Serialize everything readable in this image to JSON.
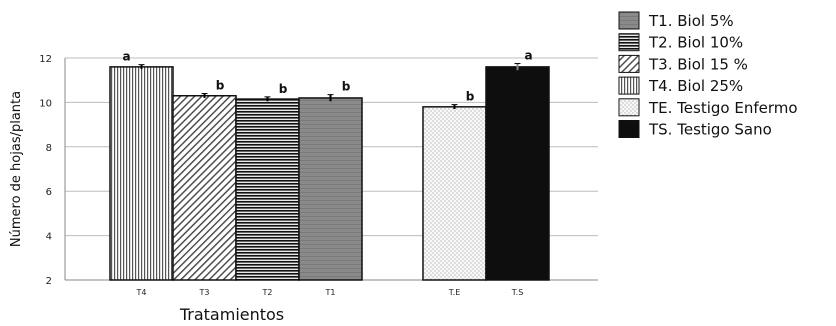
{
  "chart_data": {
    "type": "bar",
    "categories": [
      "T4",
      "T3",
      "T2",
      "T1",
      "T.E",
      "T.S"
    ],
    "values": [
      11.6,
      10.3,
      10.15,
      10.2,
      9.8,
      11.6
    ],
    "errors": [
      0.1,
      0.1,
      0.1,
      0.15,
      0.1,
      0.15
    ],
    "significance": [
      "a",
      "b",
      "b",
      "b",
      "b",
      "a"
    ],
    "patterns": [
      "vstripes",
      "diag",
      "hstripes",
      "gray",
      "dots",
      "black"
    ],
    "xlabel": "Tratamientos",
    "ylabel": "Número de hojas/planta",
    "ylim": [
      2,
      12
    ],
    "yticks": [
      2,
      4,
      6,
      8,
      10,
      12
    ],
    "grid": true,
    "legend_position": "right",
    "legend": [
      {
        "label": "T1. Biol 5%",
        "pattern": "gray"
      },
      {
        "label": "T2. Biol 10%",
        "pattern": "hstripes"
      },
      {
        "label": "T3. Biol 15 %",
        "pattern": "diag"
      },
      {
        "label": "T4. Biol 25%",
        "pattern": "vstripes"
      },
      {
        "label": "TE. Testigo Enfermo",
        "pattern": "dots"
      },
      {
        "label": "TS. Testigo Sano",
        "pattern": "black"
      }
    ]
  }
}
